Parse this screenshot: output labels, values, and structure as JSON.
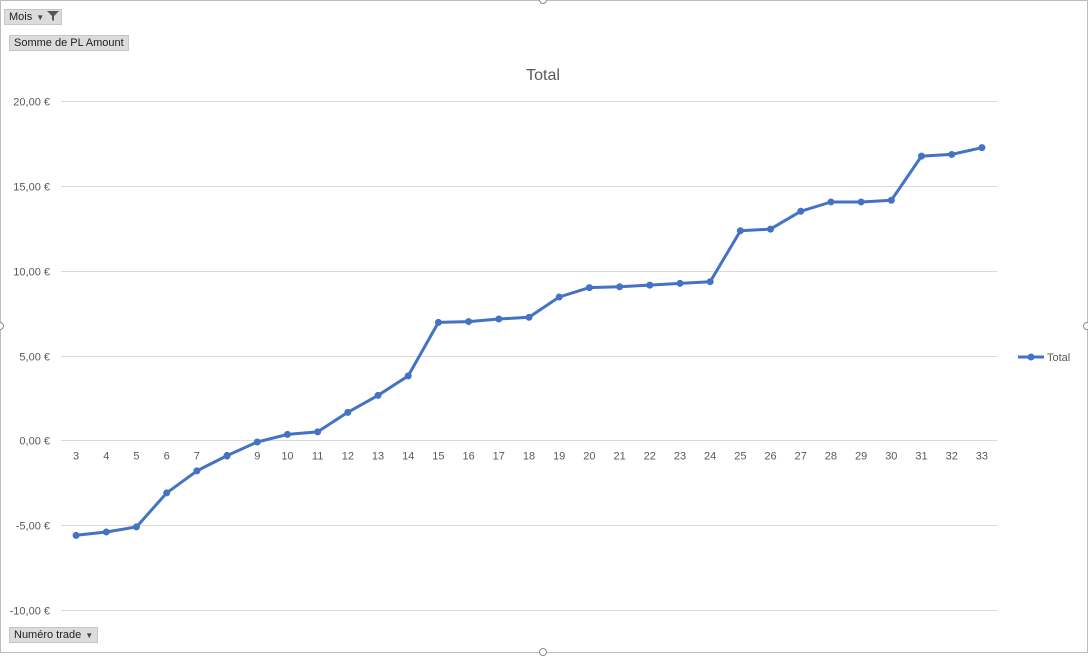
{
  "pivot_fields": {
    "filter_field": "Mois",
    "value_field": "Somme de PL Amount",
    "axis_field": "Numéro trade"
  },
  "chart_data": {
    "type": "line",
    "title": "Total",
    "x": [
      3,
      4,
      5,
      6,
      7,
      8,
      9,
      10,
      11,
      12,
      13,
      14,
      15,
      16,
      17,
      18,
      19,
      20,
      21,
      22,
      23,
      24,
      25,
      26,
      27,
      28,
      29,
      30,
      31,
      32,
      33
    ],
    "series": [
      {
        "name": "Total",
        "color": "#4472c4",
        "values": [
          -5.6,
          -5.4,
          -5.1,
          -3.1,
          -1.8,
          -0.9,
          -0.1,
          0.35,
          0.5,
          1.65,
          2.65,
          3.8,
          6.95,
          7.0,
          7.15,
          7.25,
          8.45,
          9.0,
          9.05,
          9.15,
          9.25,
          9.35,
          12.35,
          12.45,
          13.5,
          14.05,
          14.05,
          14.15,
          16.75,
          16.85,
          17.25
        ]
      }
    ],
    "ylim": [
      -10,
      20
    ],
    "yticks": [
      20,
      15,
      10,
      5,
      0,
      -5,
      -10
    ],
    "ytick_labels": [
      "20,00 €",
      "15,00 €",
      "10,00 €",
      "5,00 €",
      "0,00 €",
      "-5,00 €",
      "-10,00 €"
    ],
    "grid": true,
    "legend": "right"
  }
}
